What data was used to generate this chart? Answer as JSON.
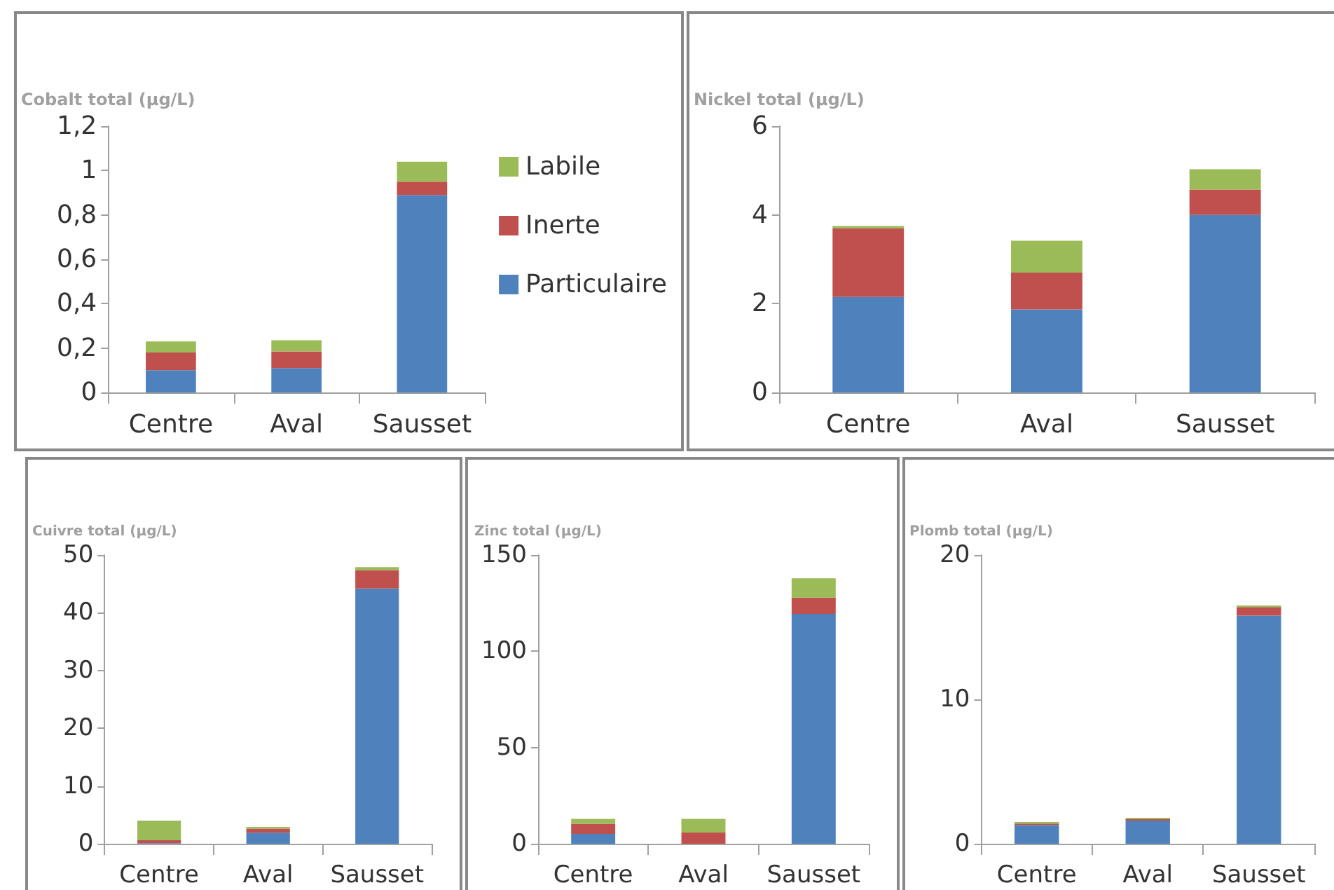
{
  "chart_data": [
    {
      "type": "bar",
      "stacked": true,
      "ylabel": "Cobalt total (µg/L)",
      "categories": [
        "Centre",
        "Aval",
        "Sausset"
      ],
      "legend": "right",
      "ylim": [
        0,
        1.2
      ],
      "yticks": [
        0,
        {
          "value": 0.2,
          "label": "0,2"
        },
        {
          "value": 0.4,
          "label": "0,4"
        },
        {
          "value": 0.6,
          "label": "0,6"
        },
        {
          "value": 0.8,
          "label": "0,8"
        },
        1,
        {
          "value": 1.2,
          "label": "1,2"
        }
      ],
      "series": [
        {
          "name": "Particulaire",
          "color": "#4f81bd",
          "values": [
            0.1,
            0.11,
            0.89
          ]
        },
        {
          "name": "Inerte",
          "color": "#c0504d",
          "values": [
            0.08,
            0.075,
            0.06
          ]
        },
        {
          "name": "Labile",
          "color": "#9bbb59",
          "values": [
            0.05,
            0.05,
            0.09
          ]
        }
      ]
    },
    {
      "type": "bar",
      "stacked": true,
      "ylabel": "Nickel total (µg/L)",
      "categories": [
        "Centre",
        "Aval",
        "Sausset"
      ],
      "ylim": [
        0,
        6
      ],
      "yticks": [
        0,
        2,
        4,
        6
      ],
      "series": [
        {
          "color": "#4f81bd",
          "values": [
            2.15,
            1.87,
            4.0
          ]
        },
        {
          "color": "#c0504d",
          "values": [
            1.55,
            0.83,
            0.57
          ]
        },
        {
          "color": "#9bbb59",
          "values": [
            0.05,
            0.72,
            0.46
          ]
        }
      ]
    },
    {
      "type": "bar",
      "stacked": true,
      "ylabel": "Cuivre total (µg/L)",
      "categories": [
        "Centre",
        "Aval",
        "Sausset"
      ],
      "ylim": [
        0,
        50
      ],
      "yticks": [
        0,
        10,
        20,
        30,
        40,
        50
      ],
      "series": [
        {
          "color": "#4f81bd",
          "values": [
            0.1,
            1.9,
            44.2
          ]
        },
        {
          "color": "#c0504d",
          "values": [
            0.5,
            0.7,
            3.2
          ]
        },
        {
          "color": "#9bbb59",
          "values": [
            3.4,
            0.3,
            0.5
          ]
        }
      ]
    },
    {
      "type": "bar",
      "stacked": true,
      "ylabel": "Zinc total (µg/L)",
      "categories": [
        "Centre",
        "Aval",
        "Sausset"
      ],
      "ylim": [
        0,
        150
      ],
      "yticks": [
        0,
        50,
        100,
        150
      ],
      "series": [
        {
          "color": "#4f81bd",
          "values": [
            5.1,
            0,
            119.4
          ]
        },
        {
          "color": "#c0504d",
          "values": [
            5.3,
            5.8,
            8.5
          ]
        },
        {
          "color": "#9bbb59",
          "values": [
            2.5,
            7.1,
            10
          ]
        }
      ]
    },
    {
      "type": "bar",
      "stacked": true,
      "ylabel": "Plomb total (µg/L)",
      "categories": [
        "Centre",
        "Aval",
        "Sausset"
      ],
      "ylim": [
        0,
        20
      ],
      "yticks": [
        0,
        10,
        20
      ],
      "series": [
        {
          "color": "#4f81bd",
          "values": [
            1.3,
            1.6,
            15.8
          ]
        },
        {
          "color": "#c0504d",
          "values": [
            0.1,
            0.1,
            0.6
          ]
        },
        {
          "color": "#9bbb59",
          "values": [
            0.1,
            0.1,
            0.1
          ]
        }
      ]
    }
  ]
}
